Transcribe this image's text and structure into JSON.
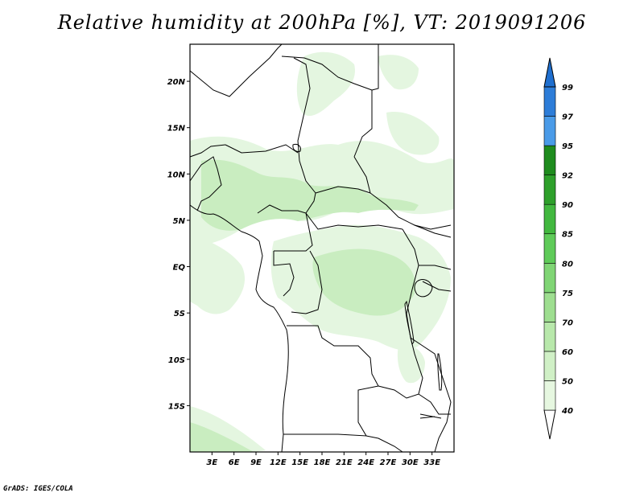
{
  "title": "Relative humidity at 200hPa [%], VT: 2019091206",
  "credit": "GrADS: IGES/COLA",
  "map": {
    "lon_range": [
      0,
      36
    ],
    "lat_range": [
      -20,
      24
    ],
    "lat_ticks": [
      {
        "lat": 20,
        "label": "20N"
      },
      {
        "lat": 15,
        "label": "15N"
      },
      {
        "lat": 10,
        "label": "10N"
      },
      {
        "lat": 5,
        "label": "5N"
      },
      {
        "lat": 0,
        "label": "EQ"
      },
      {
        "lat": -5,
        "label": "5S"
      },
      {
        "lat": -10,
        "label": "10S"
      },
      {
        "lat": -15,
        "label": "15S"
      }
    ],
    "lon_ticks": [
      {
        "lon": 3,
        "label": "3E"
      },
      {
        "lon": 6,
        "label": "6E"
      },
      {
        "lon": 9,
        "label": "9E"
      },
      {
        "lon": 12,
        "label": "12E"
      },
      {
        "lon": 15,
        "label": "15E"
      },
      {
        "lon": 18,
        "label": "18E"
      },
      {
        "lon": 21,
        "label": "21E"
      },
      {
        "lon": 24,
        "label": "24E"
      },
      {
        "lon": 27,
        "label": "27E"
      },
      {
        "lon": 30,
        "label": "30E"
      },
      {
        "lon": 33,
        "label": "33E"
      }
    ]
  },
  "colorbar": {
    "levels": [
      {
        "label": "40",
        "color": "#e6f7e0"
      },
      {
        "label": "50",
        "color": "#d0f0c6"
      },
      {
        "label": "60",
        "color": "#b8e8ab"
      },
      {
        "label": "70",
        "color": "#9ede90"
      },
      {
        "label": "75",
        "color": "#80d575"
      },
      {
        "label": "80",
        "color": "#5fcb59"
      },
      {
        "label": "85",
        "color": "#42b83f"
      },
      {
        "label": "90",
        "color": "#2ea02b"
      },
      {
        "label": "92",
        "color": "#1f8c1e"
      },
      {
        "label": "95",
        "color": "#4a9be8"
      },
      {
        "label": "97",
        "color": "#2d7dd8"
      },
      {
        "label": "99",
        "color": "#1f6fcf"
      }
    ]
  },
  "colors": {
    "humid_light": "#e4f6e0",
    "humid_mid": "#c9edc0",
    "humid_dark": "#b1e3a7",
    "border": "#000000"
  }
}
